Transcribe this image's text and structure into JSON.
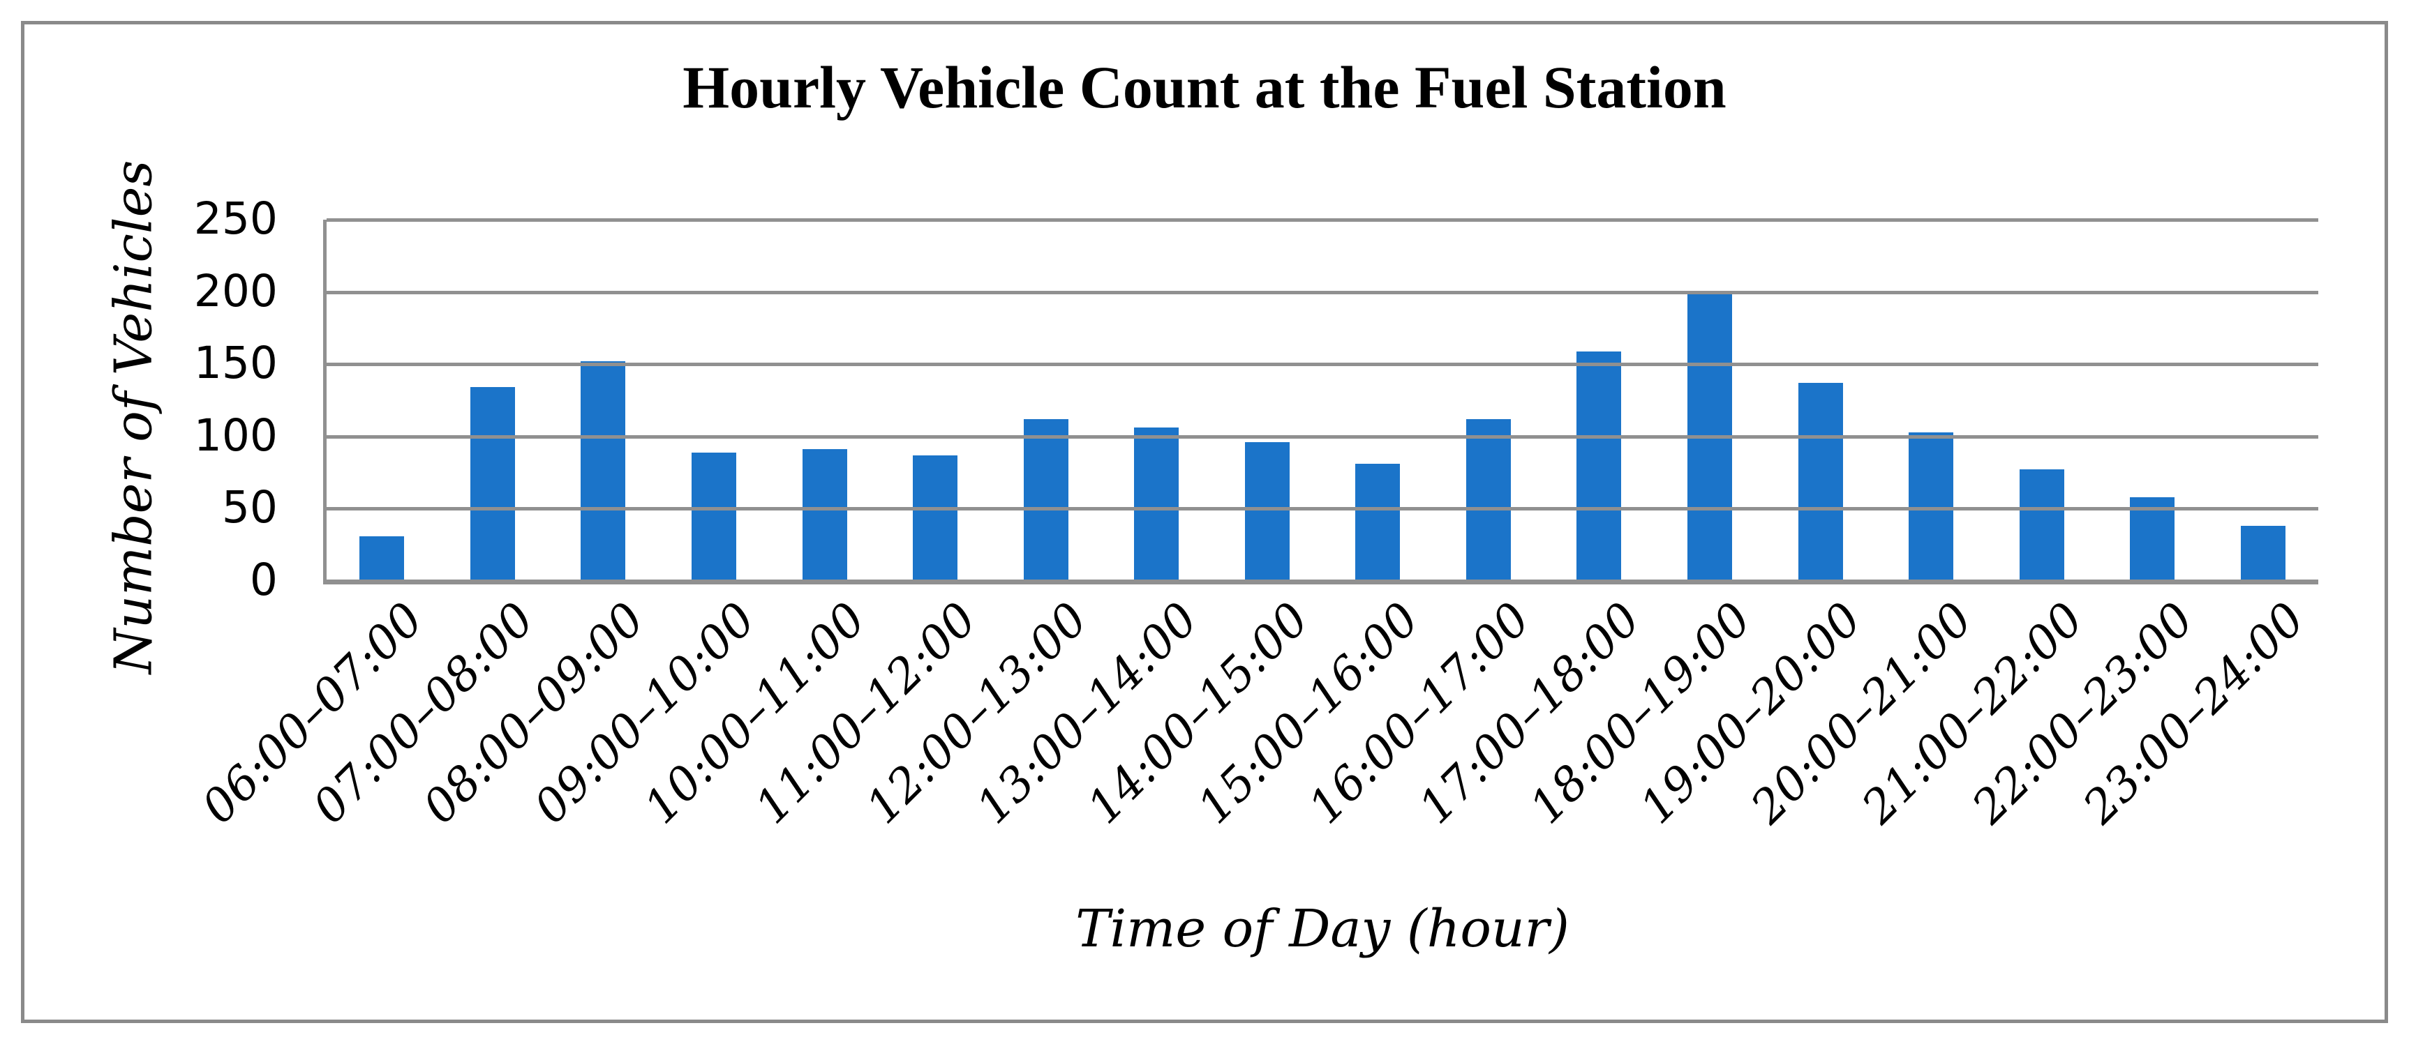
{
  "chart_data": {
    "type": "bar",
    "title": "Hourly Vehicle Count at the Fuel Station",
    "xlabel": "Time of Day (hour)",
    "ylabel": "Number of Vehicles",
    "categories": [
      "06:00–07:00",
      "07:00–08:00",
      "08:00–09:00",
      "09:00–10:00",
      "10:00–11:00",
      "11:00–12:00",
      "12:00–13:00",
      "13:00–14:00",
      "14:00–15:00",
      "15:00–16:00",
      "16:00–17:00",
      "17:00–18:00",
      "18:00–19:00",
      "19:00–20:00",
      "20:00–21:00",
      "21:00–22:00",
      "22:00–23:00",
      "23:00–24:00"
    ],
    "values": [
      31,
      134,
      152,
      89,
      91,
      87,
      112,
      106,
      96,
      81,
      112,
      159,
      201,
      137,
      103,
      77,
      58,
      38
    ],
    "yticks": [
      0,
      50,
      100,
      150,
      200,
      250
    ],
    "ylim": [
      0,
      250
    ],
    "grid": "horizontal-only",
    "legend_position": "none",
    "bar_color": "#1B74C9",
    "grid_color": "#909090",
    "frame_color": "#8A8A8A",
    "text_color": "#000000"
  }
}
